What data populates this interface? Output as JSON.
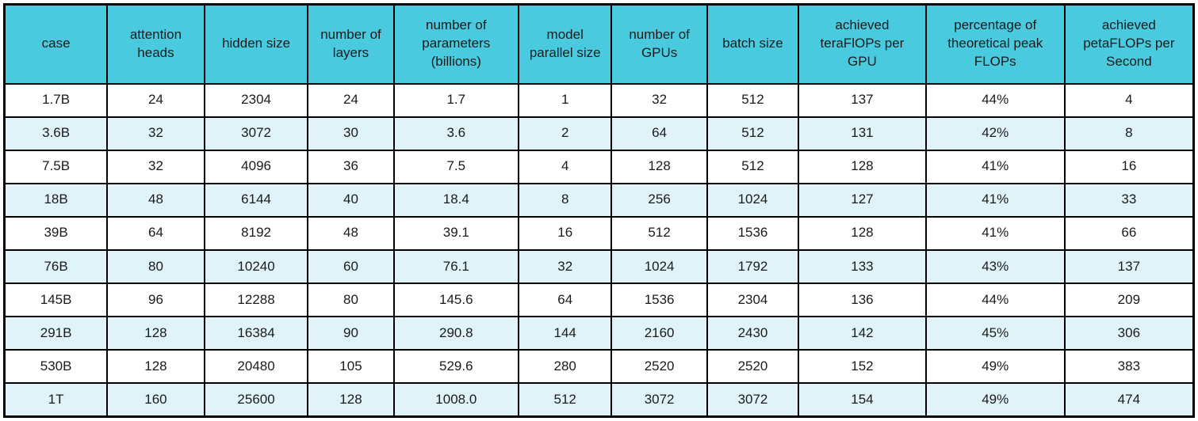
{
  "chart_data": {
    "type": "table",
    "title": "",
    "columns": [
      "case",
      "attention heads",
      "hidden size",
      "number of layers",
      "number of parameters (billions)",
      "model parallel size",
      "number of GPUs",
      "batch size",
      "achieved teraFlOPs per GPU",
      "percentage of theoretical peak FLOPs",
      "achieved petaFLOPs per Second"
    ],
    "rows": [
      [
        "1.7B",
        "24",
        "2304",
        "24",
        "1.7",
        "1",
        "32",
        "512",
        "137",
        "44%",
        "4"
      ],
      [
        "3.6B",
        "32",
        "3072",
        "30",
        "3.6",
        "2",
        "64",
        "512",
        "131",
        "42%",
        "8"
      ],
      [
        "7.5B",
        "32",
        "4096",
        "36",
        "7.5",
        "4",
        "128",
        "512",
        "128",
        "41%",
        "16"
      ],
      [
        "18B",
        "48",
        "6144",
        "40",
        "18.4",
        "8",
        "256",
        "1024",
        "127",
        "41%",
        "33"
      ],
      [
        "39B",
        "64",
        "8192",
        "48",
        "39.1",
        "16",
        "512",
        "1536",
        "128",
        "41%",
        "66"
      ],
      [
        "76B",
        "80",
        "10240",
        "60",
        "76.1",
        "32",
        "1024",
        "1792",
        "133",
        "43%",
        "137"
      ],
      [
        "145B",
        "96",
        "12288",
        "80",
        "145.6",
        "64",
        "1536",
        "2304",
        "136",
        "44%",
        "209"
      ],
      [
        "291B",
        "128",
        "16384",
        "90",
        "290.8",
        "144",
        "2160",
        "2430",
        "142",
        "45%",
        "306"
      ],
      [
        "530B",
        "128",
        "20480",
        "105",
        "529.6",
        "280",
        "2520",
        "2520",
        "152",
        "49%",
        "383"
      ],
      [
        "1T",
        "160",
        "25600",
        "128",
        "1008.0",
        "512",
        "3072",
        "3072",
        "154",
        "49%",
        "474"
      ]
    ]
  },
  "colors": {
    "header_bg": "#4ACADF",
    "row_odd_bg": "#FFFFFF",
    "row_even_bg": "#E0F3F8",
    "border": "#000000",
    "text": "#1B1B1B"
  }
}
